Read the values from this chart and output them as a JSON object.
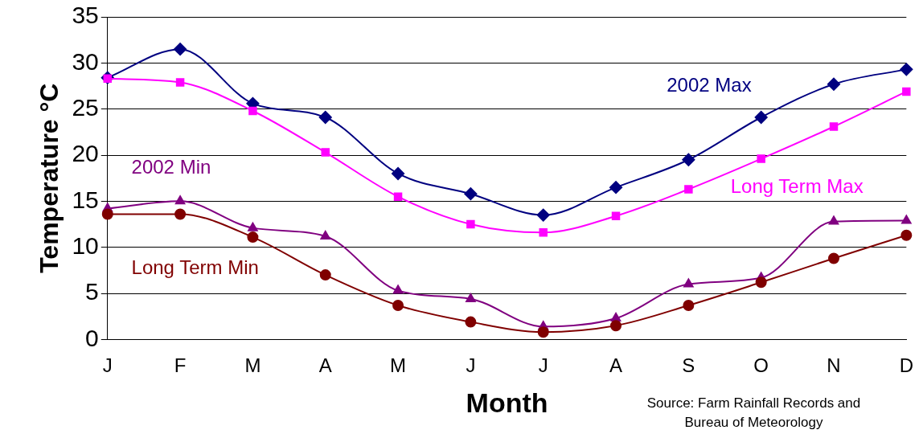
{
  "chart_data": {
    "type": "line",
    "xlabel": "Month",
    "ylabel": "Temperature °C",
    "categories": [
      "J",
      "F",
      "M",
      "A",
      "M",
      "J",
      "J",
      "A",
      "S",
      "O",
      "N",
      "D"
    ],
    "series": [
      {
        "name": "2002 Max",
        "color": "#000080",
        "marker": "diamond",
        "values": [
          28.4,
          31.5,
          25.6,
          24.1,
          18.0,
          15.8,
          13.5,
          16.5,
          19.5,
          24.1,
          27.7,
          29.3
        ]
      },
      {
        "name": "Long Term Max",
        "color": "#ff00ff",
        "marker": "square",
        "values": [
          28.3,
          27.9,
          24.8,
          20.3,
          15.5,
          12.5,
          11.6,
          13.4,
          16.3,
          19.6,
          23.1,
          26.9
        ]
      },
      {
        "name": "2002 Min",
        "color": "#800080",
        "marker": "triangle",
        "values": [
          14.2,
          15.0,
          12.1,
          11.2,
          5.3,
          4.4,
          1.4,
          2.3,
          6.0,
          6.7,
          12.8,
          12.9
        ]
      },
      {
        "name": "Long Term Min",
        "color": "#800000",
        "marker": "circle",
        "values": [
          13.6,
          13.6,
          11.1,
          7.0,
          3.7,
          1.9,
          0.8,
          1.5,
          3.7,
          6.2,
          8.8,
          11.3
        ]
      }
    ],
    "ylim": [
      0,
      35
    ],
    "yticks": [
      0,
      5,
      10,
      15,
      20,
      25,
      30,
      35
    ],
    "grid": "y",
    "legend": false,
    "annotations": [
      "Source: Farm Rainfall Records and Bureau of Meteorology"
    ]
  }
}
